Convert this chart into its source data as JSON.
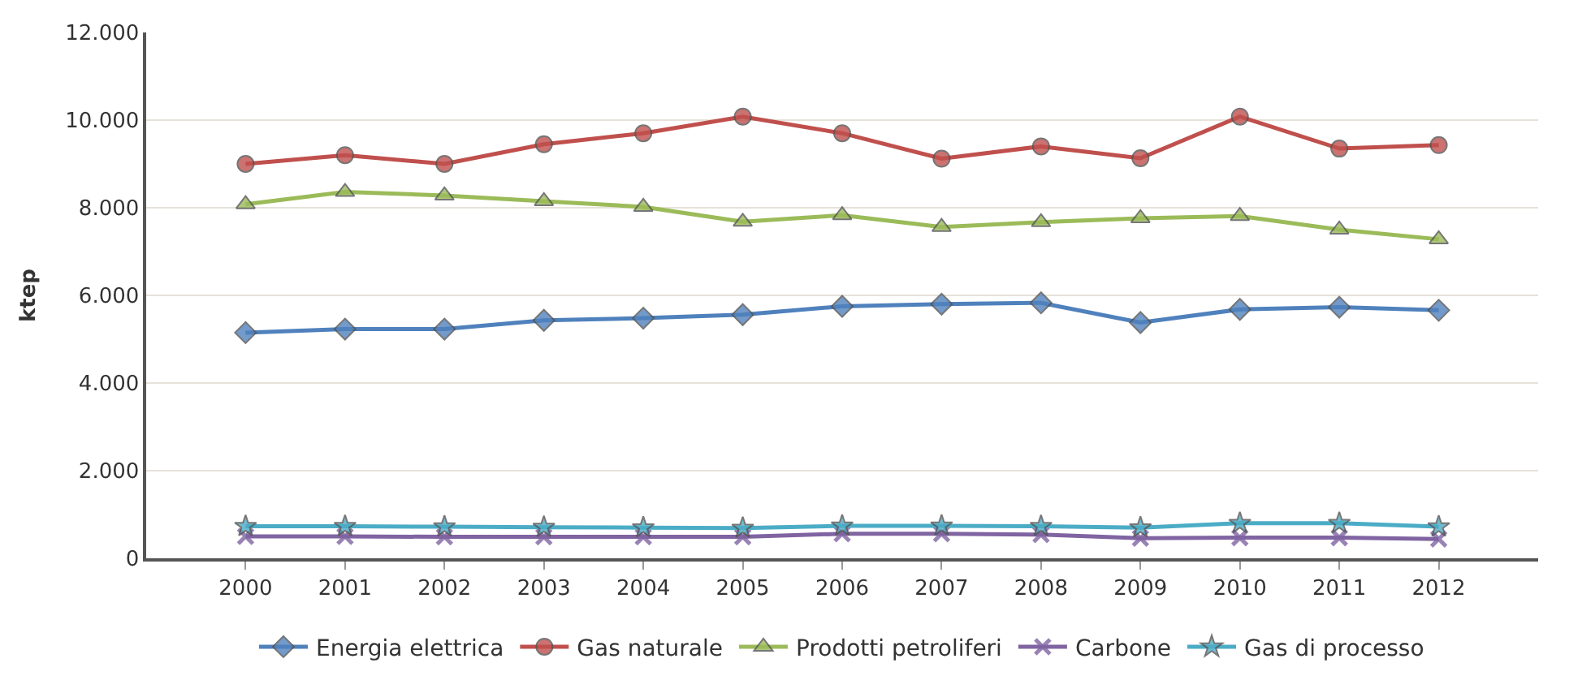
{
  "chart_data": {
    "type": "line",
    "ylabel": "ktep",
    "categories": [
      "2000",
      "2001",
      "2002",
      "2003",
      "2004",
      "2005",
      "2006",
      "2007",
      "2008",
      "2009",
      "2010",
      "2011",
      "2012"
    ],
    "series": [
      {
        "name": "Energia elettrica",
        "color": "#4f81bd",
        "marker": "diamond",
        "values": [
          5150,
          5230,
          5230,
          5430,
          5480,
          5560,
          5750,
          5800,
          5830,
          5380,
          5680,
          5730,
          5660
        ]
      },
      {
        "name": "Gas naturale",
        "color": "#c0504d",
        "marker": "circle",
        "values": [
          9000,
          9200,
          9000,
          9450,
          9700,
          10080,
          9700,
          9120,
          9400,
          9130,
          10080,
          9350,
          9430
        ]
      },
      {
        "name": "Prodotti petroliferi",
        "color": "#9bbb59",
        "marker": "triangle",
        "values": [
          8080,
          8360,
          8280,
          8150,
          8020,
          7680,
          7830,
          7560,
          7670,
          7760,
          7810,
          7500,
          7280
        ]
      },
      {
        "name": "Carbone",
        "color": "#8064a2",
        "marker": "cross",
        "values": [
          500,
          500,
          490,
          490,
          490,
          490,
          560,
          560,
          540,
          460,
          470,
          470,
          440
        ]
      },
      {
        "name": "Gas di processo",
        "color": "#4bacc6",
        "marker": "star",
        "values": [
          730,
          730,
          720,
          710,
          700,
          690,
          740,
          740,
          730,
          700,
          800,
          800,
          720
        ]
      }
    ],
    "ylim": [
      0,
      12000
    ],
    "yticks": [
      {
        "value": 0,
        "label": "0"
      },
      {
        "value": 2000,
        "label": "2.000"
      },
      {
        "value": 4000,
        "label": "4.000"
      },
      {
        "value": 6000,
        "label": "6.000"
      },
      {
        "value": 8000,
        "label": "8.000"
      },
      {
        "value": 10000,
        "label": "10.000"
      },
      {
        "value": 12000,
        "label": "12.000"
      }
    ],
    "grid": "y",
    "legend": "bottom",
    "line_style": "solid"
  }
}
